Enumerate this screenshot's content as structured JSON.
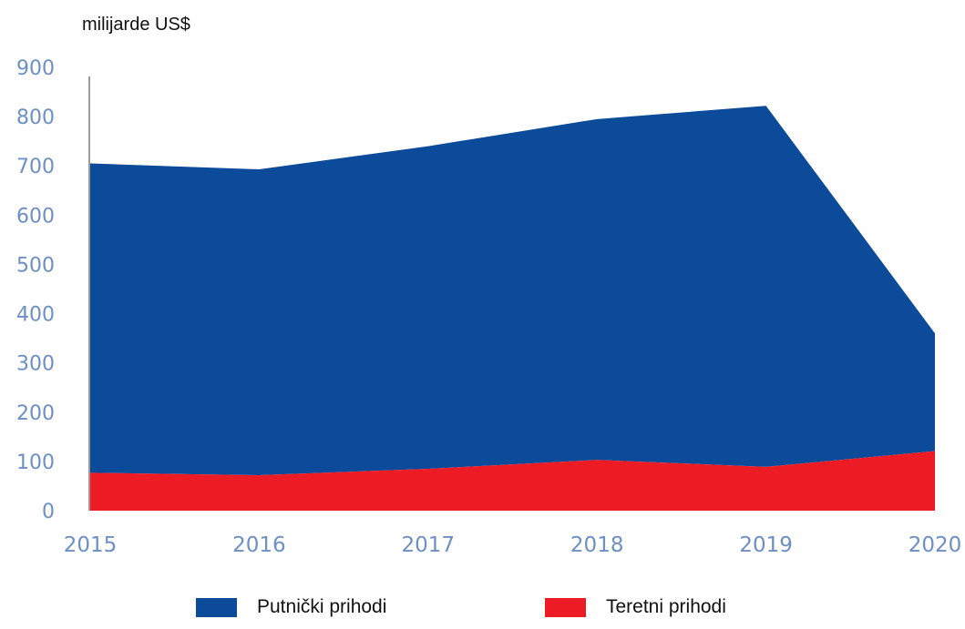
{
  "chart_data": {
    "type": "area",
    "stacked": true,
    "unit_label": "milijarde US$",
    "x": [
      "2015",
      "2016",
      "2017",
      "2018",
      "2019",
      "2020"
    ],
    "series": [
      {
        "name": "Teretni prihodi",
        "values": [
          77,
          72,
          85,
          103,
          89,
          121
        ],
        "color": "#ed1c24"
      },
      {
        "name": "Putnički prihodi",
        "values": [
          628,
          621,
          655,
          692,
          733,
          239
        ],
        "color": "#0c4a9a"
      }
    ],
    "y_ticks": [
      "0",
      "100",
      "200",
      "300",
      "400",
      "500",
      "600",
      "700",
      "800",
      "900"
    ],
    "ylim": [
      0,
      900
    ],
    "grid": false,
    "legend_position": "bottom"
  }
}
